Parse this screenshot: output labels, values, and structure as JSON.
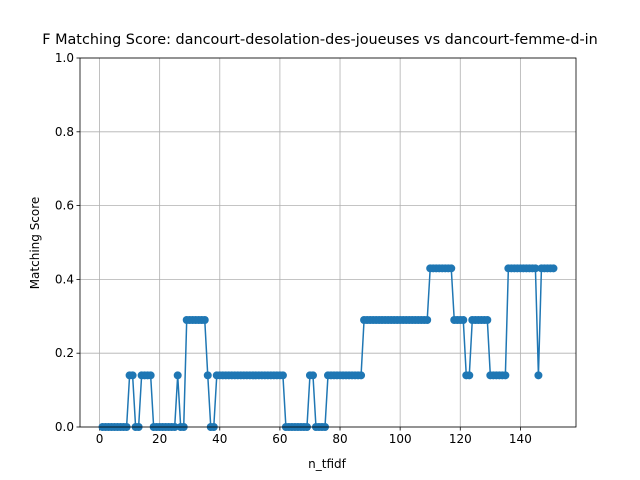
{
  "chart_data": {
    "type": "line",
    "title": "F Matching Score: dancourt-desolation-des-joueuses vs dancourt-femme-d-in",
    "xlabel": "n_tfidf",
    "ylabel": "Matching Score",
    "x": [
      1,
      2,
      3,
      4,
      5,
      6,
      7,
      8,
      9,
      10,
      11,
      12,
      13,
      14,
      15,
      16,
      17,
      18,
      19,
      20,
      21,
      22,
      23,
      24,
      25,
      26,
      27,
      28,
      29,
      30,
      31,
      32,
      33,
      34,
      35,
      36,
      37,
      38,
      39,
      40,
      41,
      42,
      43,
      44,
      45,
      46,
      47,
      48,
      49,
      50,
      51,
      52,
      53,
      54,
      55,
      56,
      57,
      58,
      59,
      60,
      61,
      62,
      63,
      64,
      65,
      66,
      67,
      68,
      69,
      70,
      71,
      72,
      73,
      74,
      75,
      76,
      77,
      78,
      79,
      80,
      81,
      82,
      83,
      84,
      85,
      86,
      87,
      88,
      89,
      90,
      91,
      92,
      93,
      94,
      95,
      96,
      97,
      98,
      99,
      100,
      101,
      102,
      103,
      104,
      105,
      106,
      107,
      108,
      109,
      110,
      111,
      112,
      113,
      114,
      115,
      116,
      117,
      118,
      119,
      120,
      121,
      122,
      123,
      124,
      125,
      126,
      127,
      128,
      129,
      130,
      131,
      132,
      133,
      134,
      135,
      136,
      137,
      138,
      139,
      140,
      141,
      142,
      143,
      144,
      145,
      146,
      147,
      148,
      149,
      150,
      151
    ],
    "series": [
      {
        "color": "#1f77b4",
        "values": [
          0,
          0,
          0,
          0,
          0,
          0,
          0,
          0,
          0,
          0.14,
          0.14,
          0,
          0,
          0.14,
          0.14,
          0.14,
          0.14,
          0,
          0,
          0,
          0,
          0,
          0,
          0,
          0,
          0.14,
          0,
          0,
          0.29,
          0.29,
          0.29,
          0.29,
          0.29,
          0.29,
          0.29,
          0.14,
          0,
          0,
          0.14,
          0.14,
          0.14,
          0.14,
          0.14,
          0.14,
          0.14,
          0.14,
          0.14,
          0.14,
          0.14,
          0.14,
          0.14,
          0.14,
          0.14,
          0.14,
          0.14,
          0.14,
          0.14,
          0.14,
          0.14,
          0.14,
          0.14,
          0,
          0,
          0,
          0,
          0,
          0,
          0,
          0,
          0.14,
          0.14,
          0,
          0,
          0,
          0,
          0.14,
          0.14,
          0.14,
          0.14,
          0.14,
          0.14,
          0.14,
          0.14,
          0.14,
          0.14,
          0.14,
          0.14,
          0.29,
          0.29,
          0.29,
          0.29,
          0.29,
          0.29,
          0.29,
          0.29,
          0.29,
          0.29,
          0.29,
          0.29,
          0.29,
          0.29,
          0.29,
          0.29,
          0.29,
          0.29,
          0.29,
          0.29,
          0.29,
          0.29,
          0.43,
          0.43,
          0.43,
          0.43,
          0.43,
          0.43,
          0.43,
          0.43,
          0.29,
          0.29,
          0.29,
          0.29,
          0.14,
          0.14,
          0.29,
          0.29,
          0.29,
          0.29,
          0.29,
          0.29,
          0.14,
          0.14,
          0.14,
          0.14,
          0.14,
          0.14,
          0.43,
          0.43,
          0.43,
          0.43,
          0.43,
          0.43,
          0.43,
          0.43,
          0.43,
          0.43,
          0.14,
          0.43,
          0.43,
          0.43,
          0.43,
          0.43
        ]
      }
    ],
    "xlim": [
      -6.5,
      158.5
    ],
    "xticks": [
      0,
      20,
      40,
      60,
      80,
      100,
      120,
      140
    ],
    "ylim": [
      0,
      1
    ],
    "yticks": [
      {
        "value": 0,
        "label": "0.0"
      },
      {
        "value": 0.2,
        "label": "0.2"
      },
      {
        "value": 0.4,
        "label": "0.4"
      },
      {
        "value": 0.6,
        "label": "0.6"
      },
      {
        "value": 0.8,
        "label": "0.8"
      },
      {
        "value": 1,
        "label": "1.0"
      }
    ],
    "grid": true
  }
}
